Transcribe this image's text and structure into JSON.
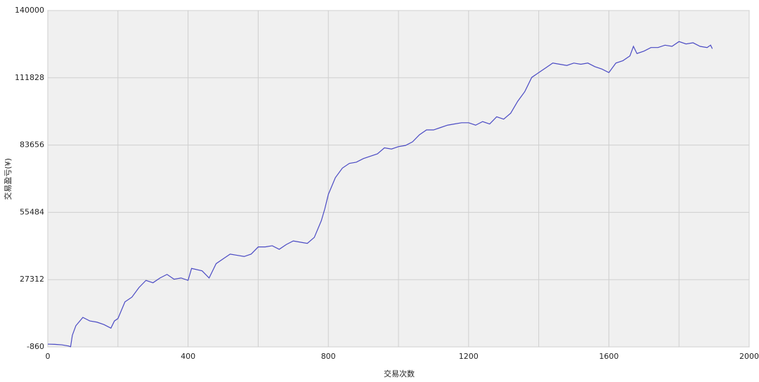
{
  "chart_data": {
    "type": "line",
    "x_label": "交易次数",
    "y_label": "交易盈亏(¥)",
    "x": [
      0,
      20,
      40,
      60,
      65,
      70,
      80,
      100,
      120,
      140,
      160,
      180,
      190,
      200,
      220,
      240,
      260,
      280,
      300,
      320,
      340,
      360,
      380,
      400,
      410,
      440,
      460,
      480,
      500,
      520,
      540,
      560,
      580,
      600,
      620,
      640,
      660,
      680,
      700,
      720,
      740,
      760,
      780,
      790,
      800,
      820,
      840,
      860,
      880,
      900,
      920,
      940,
      960,
      980,
      1000,
      1020,
      1040,
      1060,
      1080,
      1100,
      1120,
      1140,
      1160,
      1180,
      1200,
      1220,
      1240,
      1260,
      1280,
      1300,
      1320,
      1340,
      1360,
      1380,
      1400,
      1420,
      1440,
      1460,
      1480,
      1500,
      1520,
      1540,
      1560,
      1580,
      1600,
      1620,
      1640,
      1660,
      1670,
      1680,
      1700,
      1720,
      1740,
      1760,
      1780,
      1800,
      1820,
      1840,
      1860,
      1880,
      1890,
      1895
    ],
    "series": [
      {
        "name": "交易盈亏",
        "color": "#4a4ac4",
        "values": [
          300,
          200,
          0,
          -500,
          -800,
          4000,
          8000,
          11500,
          10000,
          9500,
          8500,
          7000,
          10000,
          11000,
          18000,
          20000,
          24000,
          27000,
          26000,
          28000,
          29500,
          27500,
          28000,
          27000,
          32000,
          31000,
          28000,
          34000,
          36000,
          38000,
          37500,
          37000,
          38000,
          41000,
          41000,
          41500,
          40000,
          42000,
          43500,
          43000,
          42500,
          45000,
          52000,
          57000,
          63000,
          70000,
          74000,
          76000,
          76500,
          78000,
          79000,
          80000,
          82500,
          82000,
          83000,
          83500,
          85000,
          88000,
          90000,
          90000,
          91000,
          92000,
          92500,
          93000,
          93000,
          92000,
          93500,
          92500,
          95500,
          94500,
          97000,
          102000,
          106000,
          112000,
          114000,
          116000,
          118000,
          117500,
          117000,
          118000,
          117500,
          118000,
          116500,
          115500,
          114000,
          118000,
          119000,
          121000,
          125000,
          122000,
          123000,
          124500,
          124500,
          125500,
          125000,
          127000,
          126000,
          126500,
          125000,
          124500,
          125500,
          124000
        ]
      }
    ],
    "xlim": [
      0,
      2000
    ],
    "xticks": [
      0,
      400,
      800,
      1200,
      1600,
      2000
    ],
    "ylim": [
      -860,
      140000
    ],
    "yticks": [
      -860,
      27312,
      55484,
      83656,
      111828,
      140000
    ],
    "grid": true
  }
}
